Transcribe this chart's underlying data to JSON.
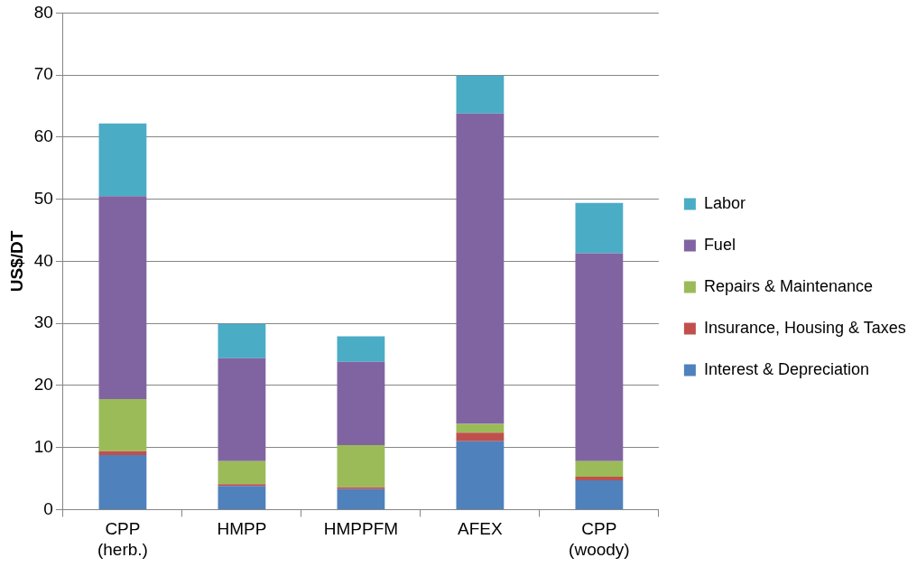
{
  "chart_data": {
    "type": "bar",
    "stacked": true,
    "ylabel": "US$/DT",
    "categories": [
      "CPP (herb.)",
      "HMPP",
      "HMPPFM",
      "AFEX",
      "CPP (woody)"
    ],
    "series": [
      {
        "name": "Interest & Depreciation",
        "color": "#4f81bd",
        "values": [
          8.8,
          3.8,
          3.3,
          11.0,
          4.7
        ]
      },
      {
        "name": "Insurance, Housing & Taxes",
        "color": "#c0504d",
        "values": [
          0.6,
          0.3,
          0.3,
          1.4,
          0.6
        ]
      },
      {
        "name": "Repairs & Maintenance",
        "color": "#9bbb59",
        "values": [
          8.4,
          3.7,
          6.8,
          1.4,
          2.5
        ]
      },
      {
        "name": "Fuel",
        "color": "#8064a2",
        "values": [
          32.7,
          16.6,
          13.4,
          50.0,
          33.5
        ]
      },
      {
        "name": "Labor",
        "color": "#4bacc6",
        "values": [
          11.7,
          5.5,
          4.1,
          6.1,
          8.1
        ]
      }
    ],
    "ylim": [
      0,
      80
    ],
    "yticks": [
      0,
      10,
      20,
      30,
      40,
      50,
      60,
      70,
      80
    ],
    "grid": "y",
    "legend": "right"
  }
}
